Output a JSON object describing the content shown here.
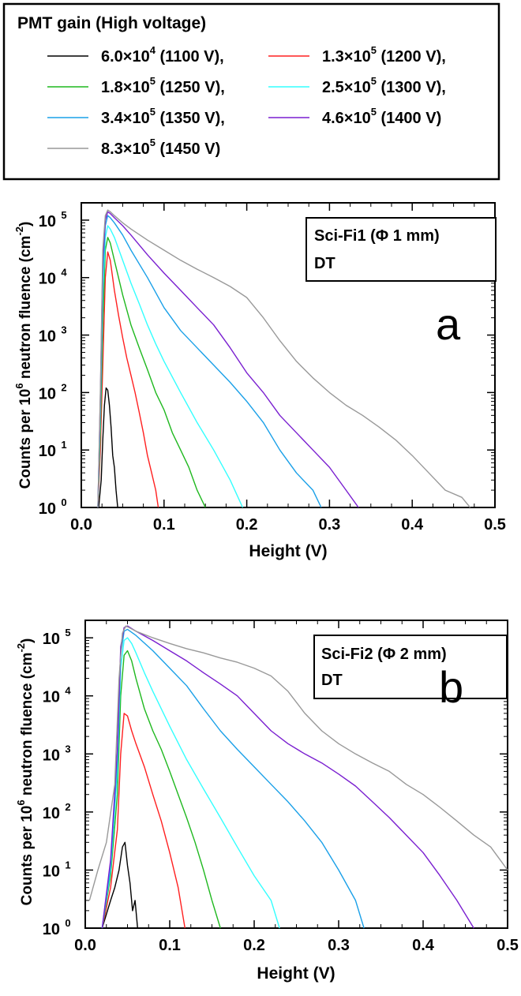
{
  "legend": {
    "title": "PMT gain (High voltage)",
    "entries": [
      {
        "label": "6.0×10",
        "exp": "4",
        "suffix": " (1100 V),",
        "color": "#000000"
      },
      {
        "label": "1.3×10",
        "exp": "5",
        "suffix": " (1200 V),",
        "color": "#ff2020"
      },
      {
        "label": "1.8×10",
        "exp": "5",
        "suffix": " (1250 V),",
        "color": "#1fb81f"
      },
      {
        "label": "2.5×10",
        "exp": "5",
        "suffix": " (1300 V),",
        "color": "#33ffff"
      },
      {
        "label": "3.4×10",
        "exp": "5",
        "suffix": " (1350 V),",
        "color": "#1aa0e8"
      },
      {
        "label": "4.6×10",
        "exp": "5",
        "suffix": " (1400 V)",
        "color": "#7a1fd0"
      },
      {
        "label": "8.3×10",
        "exp": "5",
        "suffix": " (1450 V)",
        "color": "#999999"
      }
    ]
  },
  "chart_data": [
    {
      "type": "line",
      "panel_letter": "a",
      "annotation": [
        "Sci-Fi1 (Φ 1 mm)",
        "DT"
      ],
      "xlabel": "Height (V)",
      "ylabel_parts": [
        "Counts per 10",
        "6",
        " neutron fluence (cm",
        "-2",
        ")"
      ],
      "yscale": "log",
      "xlim": [
        0,
        0.5
      ],
      "ylim": [
        1,
        200000
      ],
      "xticks": [
        "0.0",
        "0.1",
        "0.2",
        "0.3",
        "0.4",
        "0.5"
      ],
      "yticks": [
        {
          "base": "10",
          "exp": "0"
        },
        {
          "base": "10",
          "exp": "1"
        },
        {
          "base": "10",
          "exp": "2"
        },
        {
          "base": "10",
          "exp": "3"
        },
        {
          "base": "10",
          "exp": "4"
        },
        {
          "base": "10",
          "exp": "5"
        }
      ],
      "series": [
        {
          "name": "6.0×10^4 (1100 V)",
          "x": [
            0.021,
            0.024,
            0.026,
            0.028,
            0.03,
            0.032,
            0.034,
            0.036,
            0.038,
            0.04,
            0.042,
            0.044
          ],
          "y": [
            1,
            3,
            15,
            60,
            120,
            110,
            60,
            25,
            8,
            5,
            2,
            1
          ]
        },
        {
          "name": "1.3×10^5 (1200 V)",
          "x": [
            0.02,
            0.023,
            0.026,
            0.029,
            0.032,
            0.035,
            0.04,
            0.045,
            0.05,
            0.055,
            0.06,
            0.065,
            0.07,
            0.075,
            0.08,
            0.085,
            0.09,
            0.093
          ],
          "y": [
            1,
            10,
            300,
            10000,
            28000,
            20000,
            6000,
            2200,
            900,
            400,
            200,
            100,
            45,
            20,
            8,
            4,
            2,
            1
          ]
        },
        {
          "name": "1.8×10^5 (1250 V)",
          "x": [
            0.02,
            0.023,
            0.026,
            0.029,
            0.032,
            0.035,
            0.04,
            0.05,
            0.06,
            0.07,
            0.08,
            0.09,
            0.1,
            0.11,
            0.12,
            0.13,
            0.14,
            0.15
          ],
          "y": [
            1,
            20,
            1500,
            30000,
            50000,
            40000,
            20000,
            5000,
            1500,
            600,
            250,
            100,
            50,
            20,
            10,
            5,
            2,
            1
          ]
        },
        {
          "name": "2.5×10^5 (1300 V)",
          "x": [
            0.02,
            0.023,
            0.026,
            0.029,
            0.032,
            0.035,
            0.04,
            0.05,
            0.06,
            0.07,
            0.08,
            0.09,
            0.1,
            0.12,
            0.14,
            0.16,
            0.18,
            0.195
          ],
          "y": [
            1,
            40,
            5000,
            50000,
            80000,
            70000,
            50000,
            20000,
            8000,
            3500,
            1500,
            700,
            350,
            100,
            30,
            10,
            3,
            1
          ]
        },
        {
          "name": "3.4×10^5 (1350 V)",
          "x": [
            0.02,
            0.023,
            0.026,
            0.029,
            0.032,
            0.035,
            0.04,
            0.05,
            0.06,
            0.08,
            0.1,
            0.12,
            0.14,
            0.16,
            0.18,
            0.2,
            0.22,
            0.24,
            0.26,
            0.28,
            0.29
          ],
          "y": [
            1,
            60,
            10000,
            80000,
            120000,
            110000,
            90000,
            55000,
            30000,
            10000,
            3000,
            1200,
            600,
            300,
            150,
            70,
            30,
            10,
            4,
            2,
            1
          ]
        },
        {
          "name": "4.6×10^5 (1400 V)",
          "x": [
            0.02,
            0.023,
            0.026,
            0.029,
            0.032,
            0.035,
            0.04,
            0.05,
            0.06,
            0.08,
            0.1,
            0.12,
            0.14,
            0.16,
            0.18,
            0.2,
            0.22,
            0.24,
            0.26,
            0.28,
            0.3,
            0.32,
            0.335
          ],
          "y": [
            1,
            80,
            20000,
            100000,
            140000,
            130000,
            110000,
            80000,
            55000,
            25000,
            12000,
            6000,
            3000,
            1500,
            600,
            220,
            100,
            40,
            20,
            10,
            5,
            2,
            1
          ]
        },
        {
          "name": "8.3×10^5 (1450 V)",
          "x": [
            0.02,
            0.023,
            0.026,
            0.029,
            0.032,
            0.035,
            0.04,
            0.05,
            0.06,
            0.08,
            0.1,
            0.12,
            0.14,
            0.16,
            0.18,
            0.2,
            0.22,
            0.24,
            0.26,
            0.28,
            0.3,
            0.32,
            0.34,
            0.36,
            0.38,
            0.4,
            0.42,
            0.44,
            0.46,
            0.47
          ],
          "y": [
            1,
            100,
            30000,
            120000,
            150000,
            140000,
            120000,
            90000,
            70000,
            45000,
            30000,
            20000,
            14000,
            10000,
            7000,
            4500,
            2000,
            800,
            350,
            180,
            100,
            60,
            40,
            25,
            15,
            8,
            4,
            2,
            1.5,
            1
          ]
        }
      ]
    },
    {
      "type": "line",
      "panel_letter": "b",
      "annotation": [
        "Sci-Fi2 (Φ 2 mm)",
        "DT"
      ],
      "xlabel": "Height (V)",
      "ylabel_parts": [
        "Counts per 10",
        "6",
        " neutron fluence (cm",
        "-2",
        ")"
      ],
      "yscale": "log",
      "xlim": [
        0,
        0.5
      ],
      "ylim": [
        1,
        200000
      ],
      "xticks": [
        "0.0",
        "0.1",
        "0.2",
        "0.3",
        "0.4",
        "0.5"
      ],
      "yticks": [
        {
          "base": "10",
          "exp": "0"
        },
        {
          "base": "10",
          "exp": "1"
        },
        {
          "base": "10",
          "exp": "2"
        },
        {
          "base": "10",
          "exp": "3"
        },
        {
          "base": "10",
          "exp": "4"
        },
        {
          "base": "10",
          "exp": "5"
        }
      ],
      "series": [
        {
          "name": "6.0×10^4 (1100 V)",
          "x": [
            0.02,
            0.03,
            0.035,
            0.04,
            0.044,
            0.047,
            0.05,
            0.053,
            0.056,
            0.059,
            0.062
          ],
          "y": [
            1,
            3,
            5,
            10,
            25,
            30,
            12,
            6,
            2,
            3,
            1
          ]
        },
        {
          "name": "1.3×10^5 (1200 V)",
          "x": [
            0.02,
            0.03,
            0.038,
            0.042,
            0.046,
            0.05,
            0.055,
            0.06,
            0.07,
            0.08,
            0.09,
            0.1,
            0.11,
            0.118
          ],
          "y": [
            1,
            5,
            50,
            1000,
            5000,
            4500,
            2500,
            1500,
            600,
            200,
            70,
            20,
            5,
            1
          ]
        },
        {
          "name": "1.8×10^5 (1250 V)",
          "x": [
            0.02,
            0.03,
            0.038,
            0.042,
            0.046,
            0.05,
            0.055,
            0.06,
            0.07,
            0.08,
            0.09,
            0.1,
            0.11,
            0.12,
            0.13,
            0.14,
            0.15,
            0.16
          ],
          "y": [
            1,
            8,
            200,
            10000,
            50000,
            60000,
            40000,
            20000,
            6000,
            2500,
            1200,
            500,
            200,
            80,
            30,
            10,
            3,
            1
          ]
        },
        {
          "name": "2.5×10^5 (1300 V)",
          "x": [
            0.02,
            0.03,
            0.038,
            0.042,
            0.046,
            0.05,
            0.055,
            0.06,
            0.07,
            0.08,
            0.1,
            0.12,
            0.14,
            0.16,
            0.18,
            0.2,
            0.22,
            0.23
          ],
          "y": [
            1,
            10,
            500,
            30000,
            90000,
            100000,
            80000,
            55000,
            25000,
            12000,
            3000,
            800,
            250,
            80,
            25,
            8,
            3,
            1
          ]
        },
        {
          "name": "3.4×10^5 (1350 V)",
          "x": [
            0.02,
            0.03,
            0.038,
            0.042,
            0.046,
            0.05,
            0.06,
            0.08,
            0.1,
            0.12,
            0.14,
            0.16,
            0.18,
            0.2,
            0.22,
            0.24,
            0.26,
            0.28,
            0.3,
            0.32,
            0.33
          ],
          "y": [
            1,
            12,
            800,
            50000,
            130000,
            140000,
            110000,
            60000,
            30000,
            15000,
            6000,
            2500,
            1200,
            600,
            300,
            150,
            70,
            30,
            10,
            3,
            1
          ]
        },
        {
          "name": "4.6×10^5 (1400 V)",
          "x": [
            0.02,
            0.03,
            0.038,
            0.042,
            0.046,
            0.05,
            0.06,
            0.08,
            0.1,
            0.12,
            0.14,
            0.16,
            0.18,
            0.2,
            0.22,
            0.24,
            0.26,
            0.28,
            0.3,
            0.32,
            0.34,
            0.36,
            0.38,
            0.4,
            0.42,
            0.44,
            0.46
          ],
          "y": [
            1,
            15,
            1200,
            70000,
            150000,
            160000,
            130000,
            90000,
            60000,
            40000,
            25000,
            16000,
            10000,
            5000,
            2500,
            1500,
            1000,
            700,
            450,
            280,
            150,
            80,
            40,
            20,
            8,
            3,
            1
          ]
        },
        {
          "name": "8.3×10^5 (1450 V)",
          "x": [
            0.005,
            0.015,
            0.025,
            0.035,
            0.04,
            0.044,
            0.048,
            0.052,
            0.06,
            0.08,
            0.1,
            0.12,
            0.14,
            0.16,
            0.18,
            0.2,
            0.22,
            0.24,
            0.26,
            0.28,
            0.3,
            0.32,
            0.34,
            0.36,
            0.38,
            0.4,
            0.42,
            0.44,
            0.46,
            0.48,
            0.5
          ],
          "y": [
            3,
            10,
            30,
            300,
            20000,
            120000,
            160000,
            150000,
            130000,
            100000,
            80000,
            65000,
            55000,
            45000,
            38000,
            30000,
            22000,
            12000,
            5000,
            2500,
            1500,
            1000,
            700,
            500,
            300,
            200,
            120,
            70,
            40,
            25,
            10
          ]
        }
      ]
    }
  ]
}
